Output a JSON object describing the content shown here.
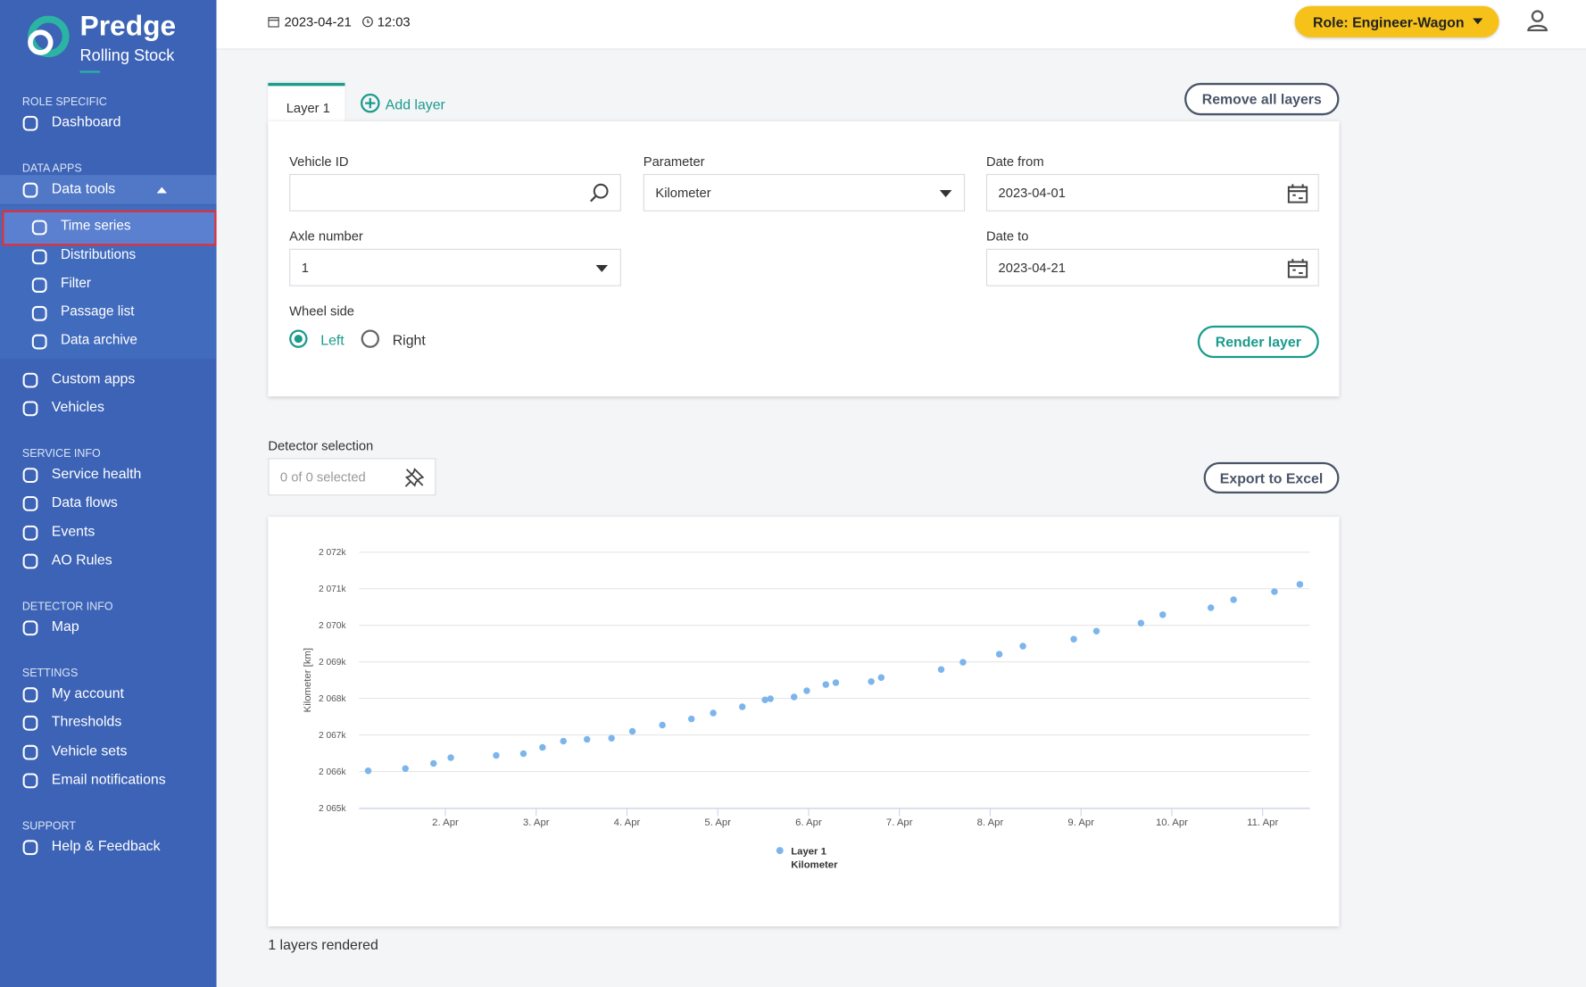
{
  "sidebar": {
    "brand": "Predge",
    "subbrand": "Rolling Stock",
    "sections": [
      {
        "title": "ROLE SPECIFIC",
        "items": [
          {
            "label": "Dashboard"
          }
        ]
      },
      {
        "title": "DATA APPS",
        "items": [
          {
            "label": "Data tools",
            "children": [
              "Time series",
              "Distributions",
              "Filter",
              "Passage list",
              "Data archive"
            ]
          },
          {
            "label": "Custom apps"
          },
          {
            "label": "Vehicles"
          }
        ]
      },
      {
        "title": "SERVICE INFO",
        "items": [
          {
            "label": "Service health"
          },
          {
            "label": "Data flows"
          },
          {
            "label": "Events"
          },
          {
            "label": "AO Rules"
          }
        ]
      },
      {
        "title": "DETECTOR INFO",
        "items": [
          {
            "label": "Map"
          }
        ]
      },
      {
        "title": "SETTINGS",
        "items": [
          {
            "label": "My account"
          },
          {
            "label": "Thresholds"
          },
          {
            "label": "Vehicle sets"
          },
          {
            "label": "Email notifications"
          }
        ]
      },
      {
        "title": "SUPPORT",
        "items": [
          {
            "label": "Help & Feedback"
          }
        ]
      }
    ]
  },
  "topbar": {
    "date": "2023-04-21",
    "time": "12:03",
    "role": "Role: Engineer-Wagon"
  },
  "tabs": {
    "items": [
      "Layer 1"
    ],
    "add": "Add layer",
    "remove": "Remove all layers"
  },
  "form": {
    "vehicle_id": {
      "label": "Vehicle ID"
    },
    "parameter": {
      "label": "Parameter",
      "value": "Kilometer"
    },
    "date_from": {
      "label": "Date from",
      "value": "2023-04-01"
    },
    "axle": {
      "label": "Axle number",
      "value": "1"
    },
    "date_to": {
      "label": "Date to",
      "value": "2023-04-21"
    },
    "wheel_side": {
      "label": "Wheel side",
      "options": [
        "Left",
        "Right"
      ],
      "selected_index": 0
    },
    "render": "Render layer"
  },
  "detector": {
    "label": "Detector selection",
    "placeholder": "0 of 0 selected",
    "export": "Export to Excel"
  },
  "chart_data": {
    "type": "scatter",
    "y_label": "Kilometer [km]",
    "x": [
      1.15,
      1.56,
      1.87,
      2.06,
      2.56,
      2.86,
      3.07,
      3.3,
      3.56,
      3.83,
      4.06,
      4.39,
      4.71,
      4.95,
      5.27,
      5.52,
      5.58,
      5.84,
      5.98,
      6.19,
      6.3,
      6.69,
      6.8,
      7.46,
      7.7,
      8.1,
      8.36,
      8.92,
      9.17,
      9.66,
      9.9,
      10.43,
      10.68,
      11.13,
      11.41
    ],
    "series": [
      {
        "name": "Layer 1",
        "subtitle": "Kilometer",
        "color": "#7cb5ec",
        "values": [
          2066020,
          2066080,
          2066220,
          2066380,
          2066440,
          2066490,
          2066660,
          2066830,
          2066880,
          2066910,
          2067100,
          2067270,
          2067440,
          2067600,
          2067770,
          2067960,
          2067990,
          2068040,
          2068210,
          2068380,
          2068430,
          2068460,
          2068570,
          2068790,
          2068990,
          2069210,
          2069430,
          2069620,
          2069840,
          2070060,
          2070290,
          2070480,
          2070700,
          2070920,
          2071120
        ]
      }
    ],
    "xlim": [
      1.05,
      11.52
    ],
    "xticks": [
      {
        "value": 2,
        "label": "2. Apr"
      },
      {
        "value": 3,
        "label": "3. Apr"
      },
      {
        "value": 4,
        "label": "4. Apr"
      },
      {
        "value": 5,
        "label": "5. Apr"
      },
      {
        "value": 6,
        "label": "6. Apr"
      },
      {
        "value": 7,
        "label": "7. Apr"
      },
      {
        "value": 8,
        "label": "8. Apr"
      },
      {
        "value": 9,
        "label": "9. Apr"
      },
      {
        "value": 10,
        "label": "10. Apr"
      },
      {
        "value": 11,
        "label": "11. Apr"
      }
    ],
    "ylim": [
      2065000,
      2072000
    ],
    "yticks": [
      {
        "value": 2065000,
        "label": "2 065k"
      },
      {
        "value": 2066000,
        "label": "2 066k"
      },
      {
        "value": 2067000,
        "label": "2 067k"
      },
      {
        "value": 2068000,
        "label": "2 068k"
      },
      {
        "value": 2069000,
        "label": "2 069k"
      },
      {
        "value": 2070000,
        "label": "2 070k"
      },
      {
        "value": 2071000,
        "label": "2 071k"
      },
      {
        "value": 2072000,
        "label": "2 072k"
      }
    ],
    "grid": true
  },
  "footer": "1 layers rendered"
}
